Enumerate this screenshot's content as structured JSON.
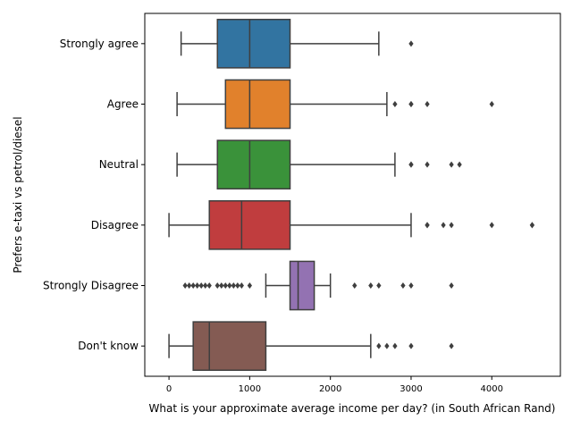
{
  "chart_data": {
    "type": "boxplot",
    "orientation": "horizontal",
    "xlabel": "What is your approximate average income per day? (in South African Rand)",
    "ylabel": "Prefers e-taxi vs petrol/diesel",
    "xlim": [
      -300,
      4850
    ],
    "xticks": [
      0,
      1000,
      2000,
      3000,
      4000
    ],
    "grid": false,
    "categories": [
      "Strongly agree",
      "Agree",
      "Neutral",
      "Disagree",
      "Strongly Disagree",
      "Don't know"
    ],
    "colors": [
      "#3274a1",
      "#e1812c",
      "#3a923a",
      "#c03d3e",
      "#9372b2",
      "#845b53"
    ],
    "boxes": [
      {
        "category": "Strongly agree",
        "whisker_low": 150,
        "q1": 600,
        "median": 1000,
        "q3": 1500,
        "whisker_high": 2600,
        "outliers": [
          3000
        ]
      },
      {
        "category": "Agree",
        "whisker_low": 100,
        "q1": 700,
        "median": 1000,
        "q3": 1500,
        "whisker_high": 2700,
        "outliers": [
          2800,
          3000,
          3000,
          3200,
          4000
        ]
      },
      {
        "category": "Neutral",
        "whisker_low": 100,
        "q1": 600,
        "median": 1000,
        "q3": 1500,
        "whisker_high": 2800,
        "outliers": [
          3000,
          3000,
          3200,
          3500,
          3600
        ]
      },
      {
        "category": "Disagree",
        "whisker_low": 0,
        "q1": 500,
        "median": 900,
        "q3": 1500,
        "whisker_high": 3000,
        "outliers": [
          3200,
          3200,
          3400,
          3500,
          4000,
          4500,
          4500
        ]
      },
      {
        "category": "Strongly Disagree",
        "whisker_low": 1200,
        "q1": 1500,
        "median": 1600,
        "q3": 1800,
        "whisker_high": 2000,
        "outliers": [
          200,
          250,
          300,
          350,
          400,
          450,
          500,
          600,
          650,
          700,
          750,
          800,
          850,
          900,
          1000,
          2300,
          2500,
          2600,
          2900,
          3000,
          3500
        ]
      },
      {
        "category": "Don't know",
        "whisker_low": 0,
        "q1": 300,
        "median": 500,
        "q3": 1200,
        "whisker_high": 2500,
        "outliers": [
          2600,
          2700,
          2800,
          3000,
          3500
        ]
      }
    ]
  }
}
